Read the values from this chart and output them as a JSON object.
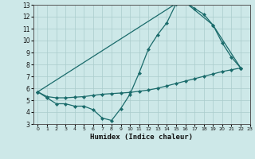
{
  "xlabel": "Humidex (Indice chaleur)",
  "xlim": [
    -0.5,
    23
  ],
  "ylim": [
    3,
    13
  ],
  "xticks": [
    0,
    1,
    2,
    3,
    4,
    5,
    6,
    7,
    8,
    9,
    10,
    11,
    12,
    13,
    14,
    15,
    16,
    17,
    18,
    19,
    20,
    21,
    22,
    23
  ],
  "yticks": [
    3,
    4,
    5,
    6,
    7,
    8,
    9,
    10,
    11,
    12,
    13
  ],
  "bg_color": "#cde8e8",
  "grid_color": "#aacccc",
  "line_color": "#1a6b6b",
  "line1_x": [
    0,
    1,
    2,
    3,
    4,
    5,
    6,
    7,
    8,
    9,
    10,
    11,
    12,
    13,
    14,
    15,
    16,
    17,
    18,
    19,
    20,
    21,
    22
  ],
  "line1_y": [
    5.7,
    5.2,
    4.7,
    4.7,
    4.5,
    4.5,
    4.2,
    3.5,
    3.3,
    4.3,
    5.5,
    7.3,
    9.3,
    10.5,
    11.5,
    13.1,
    13.2,
    12.7,
    12.2,
    11.3,
    9.8,
    8.6,
    7.7
  ],
  "line2_x": [
    0,
    15,
    16,
    19,
    22
  ],
  "line2_y": [
    5.7,
    13.1,
    13.2,
    11.3,
    7.7
  ],
  "line3_x": [
    0,
    1,
    2,
    3,
    4,
    5,
    6,
    7,
    8,
    9,
    10,
    11,
    12,
    13,
    14,
    15,
    16,
    17,
    18,
    19,
    20,
    21,
    22
  ],
  "line3_y": [
    5.7,
    5.3,
    5.2,
    5.2,
    5.25,
    5.3,
    5.4,
    5.5,
    5.55,
    5.6,
    5.65,
    5.75,
    5.85,
    6.0,
    6.2,
    6.4,
    6.6,
    6.8,
    7.0,
    7.2,
    7.4,
    7.55,
    7.7
  ]
}
